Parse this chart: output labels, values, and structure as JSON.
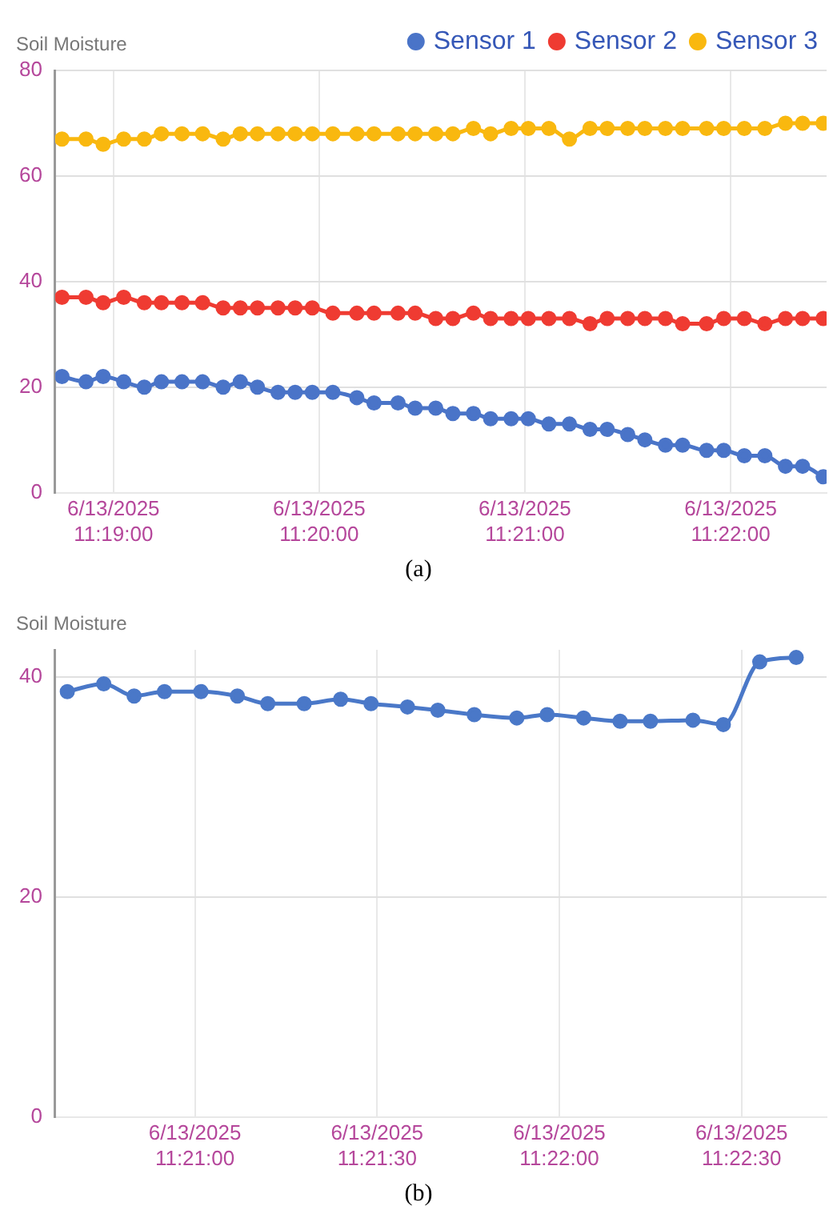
{
  "chart_data": [
    {
      "type": "line",
      "ylabel": "Soil Moisture",
      "annotations": [
        "(a)"
      ],
      "legend": "top right",
      "grid": true,
      "marker": "circle",
      "line_style": "solid",
      "x": [
        "2025-06-13T11:18:45",
        "2025-06-13T11:18:52",
        "2025-06-13T11:18:57",
        "2025-06-13T11:19:03",
        "2025-06-13T11:19:09",
        "2025-06-13T11:19:14",
        "2025-06-13T11:19:20",
        "2025-06-13T11:19:26",
        "2025-06-13T11:19:32",
        "2025-06-13T11:19:37",
        "2025-06-13T11:19:42",
        "2025-06-13T11:19:48",
        "2025-06-13T11:19:53",
        "2025-06-13T11:19:58",
        "2025-06-13T11:20:04",
        "2025-06-13T11:20:11",
        "2025-06-13T11:20:16",
        "2025-06-13T11:20:23",
        "2025-06-13T11:20:28",
        "2025-06-13T11:20:34",
        "2025-06-13T11:20:39",
        "2025-06-13T11:20:45",
        "2025-06-13T11:20:50",
        "2025-06-13T11:20:56",
        "2025-06-13T11:21:01",
        "2025-06-13T11:21:07",
        "2025-06-13T11:21:13",
        "2025-06-13T11:21:19",
        "2025-06-13T11:21:24",
        "2025-06-13T11:21:30",
        "2025-06-13T11:21:35",
        "2025-06-13T11:21:41",
        "2025-06-13T11:21:46",
        "2025-06-13T11:21:53",
        "2025-06-13T11:21:58",
        "2025-06-13T11:22:04",
        "2025-06-13T11:22:10",
        "2025-06-13T11:22:16",
        "2025-06-13T11:22:21",
        "2025-06-13T11:22:27"
      ],
      "xlim": [
        "2025-06-13T11:18:43",
        "2025-06-13T11:22:28"
      ],
      "xticks": [
        {
          "value": "2025-06-13T11:19:00",
          "label": "6/13/2025 11:19:00"
        },
        {
          "value": "2025-06-13T11:20:00",
          "label": "6/13/2025 11:20:00"
        },
        {
          "value": "2025-06-13T11:21:00",
          "label": "6/13/2025 11:21:00"
        },
        {
          "value": "2025-06-13T11:22:00",
          "label": "6/13/2025 11:22:00"
        }
      ],
      "ylim": [
        0,
        80
      ],
      "yticks": [
        0,
        20,
        40,
        60,
        80
      ],
      "series": [
        {
          "name": "Sensor 1",
          "color": "#4a74c8",
          "values": [
            22,
            21,
            22,
            21,
            20,
            21,
            21,
            21,
            20,
            21,
            20,
            19,
            19,
            19,
            19,
            18,
            17,
            17,
            16,
            16,
            15,
            15,
            14,
            14,
            14,
            13,
            13,
            12,
            12,
            11,
            10,
            9,
            9,
            8,
            8,
            7,
            7,
            5,
            5,
            3
          ]
        },
        {
          "name": "Sensor 2",
          "color": "#ef3b32",
          "values": [
            37,
            37,
            36,
            37,
            36,
            36,
            36,
            36,
            35,
            35,
            35,
            35,
            35,
            35,
            34,
            34,
            34,
            34,
            34,
            33,
            33,
            34,
            33,
            33,
            33,
            33,
            33,
            32,
            33,
            33,
            33,
            33,
            32,
            32,
            33,
            33,
            32,
            33,
            33,
            33
          ]
        },
        {
          "name": "Sensor 3",
          "color": "#f9b80f",
          "values": [
            67,
            67,
            66,
            67,
            67,
            68,
            68,
            68,
            67,
            68,
            68,
            68,
            68,
            68,
            68,
            68,
            68,
            68,
            68,
            68,
            68,
            69,
            68,
            69,
            69,
            69,
            67,
            69,
            69,
            69,
            69,
            69,
            69,
            69,
            69,
            69,
            69,
            70,
            70,
            70
          ]
        }
      ]
    },
    {
      "type": "line",
      "ylabel": "Soil Moisture",
      "annotations": [
        "(b)"
      ],
      "grid": true,
      "marker": "circle",
      "line_style": "solid",
      "x": [
        "2025-06-13T11:20:39",
        "2025-06-13T11:20:45",
        "2025-06-13T11:20:50",
        "2025-06-13T11:20:55",
        "2025-06-13T11:21:01",
        "2025-06-13T11:21:07",
        "2025-06-13T11:21:12",
        "2025-06-13T11:21:18",
        "2025-06-13T11:21:24",
        "2025-06-13T11:21:29",
        "2025-06-13T11:21:35",
        "2025-06-13T11:21:40",
        "2025-06-13T11:21:46",
        "2025-06-13T11:21:53",
        "2025-06-13T11:21:58",
        "2025-06-13T11:22:04",
        "2025-06-13T11:22:10",
        "2025-06-13T11:22:15",
        "2025-06-13T11:22:22",
        "2025-06-13T11:22:27",
        "2025-06-13T11:22:33",
        "2025-06-13T11:22:39"
      ],
      "xlim": [
        "2025-06-13T11:20:37",
        "2025-06-13T11:22:44"
      ],
      "xticks": [
        {
          "value": "2025-06-13T11:21:00",
          "label": "6/13/2025 11:21:00"
        },
        {
          "value": "2025-06-13T11:21:30",
          "label": "6/13/2025 11:21:30"
        },
        {
          "value": "2025-06-13T11:22:00",
          "label": "6/13/2025 11:22:00"
        },
        {
          "value": "2025-06-13T11:22:30",
          "label": "6/13/2025 11:22:30"
        }
      ],
      "ylim": [
        0,
        42.5
      ],
      "yticks": [
        0,
        20,
        40
      ],
      "series": [
        {
          "color": "#4a78c8",
          "values": [
            38.7,
            39.4,
            38.3,
            38.7,
            38.7,
            38.3,
            37.6,
            37.6,
            38.0,
            37.6,
            37.3,
            37.0,
            36.6,
            36.3,
            36.6,
            36.3,
            36.0,
            36.0,
            36.1,
            35.7,
            41.4,
            41.8
          ]
        }
      ]
    }
  ]
}
